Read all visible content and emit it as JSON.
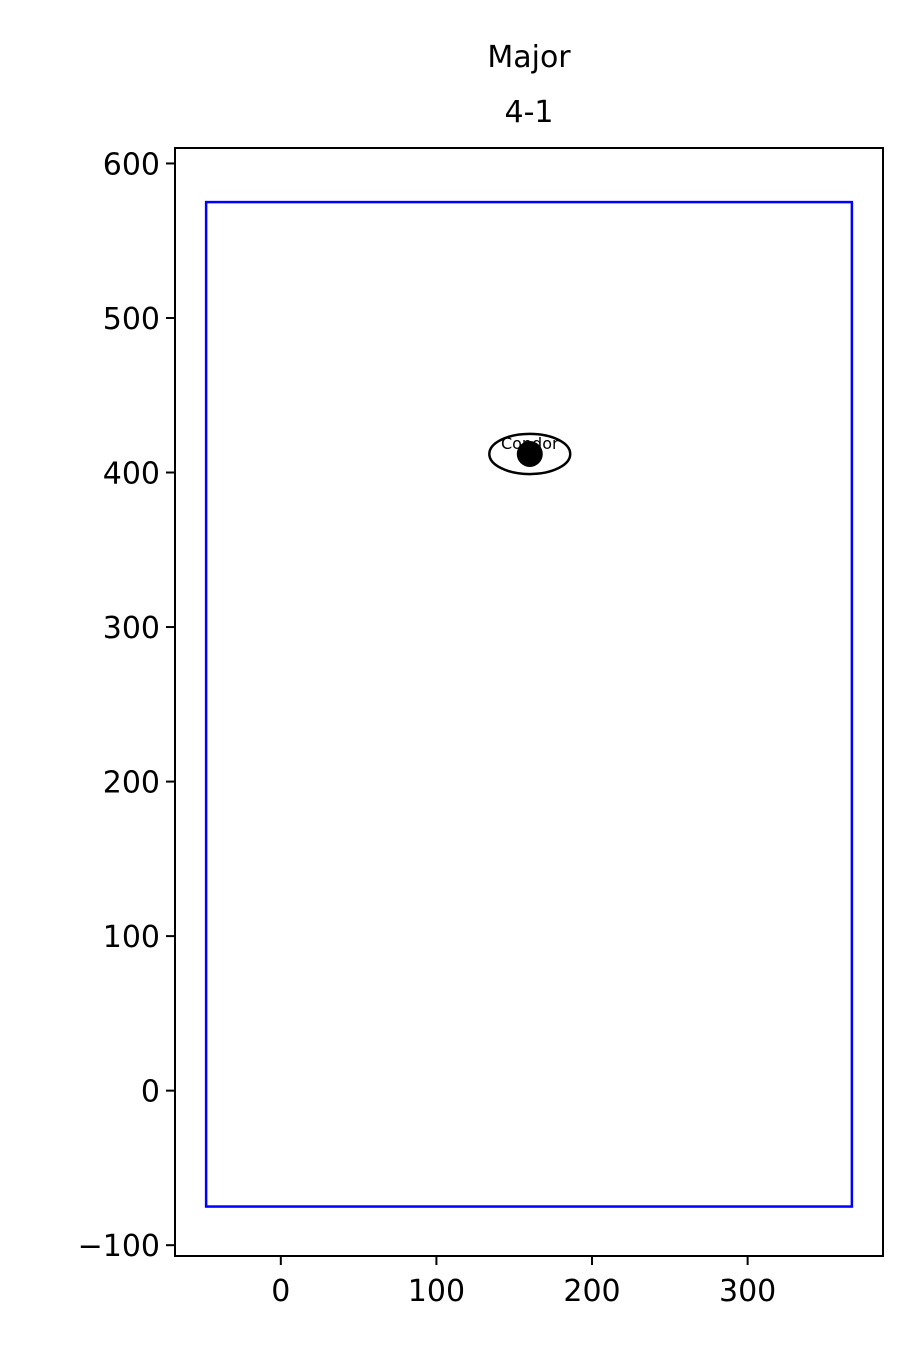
{
  "chart_data": {
    "type": "scatter",
    "title_line1": "Major",
    "title_line2": "4-1",
    "xlabel": "",
    "ylabel": "",
    "xlim": [
      -68,
      387
    ],
    "ylim": [
      -107,
      610
    ],
    "x_ticks": [
      0,
      100,
      200,
      300
    ],
    "y_ticks": [
      -100,
      0,
      100,
      200,
      300,
      400,
      500,
      600
    ],
    "grid": false,
    "boundary": {
      "color": "#0000ff",
      "x": [
        -48,
        367
      ],
      "y": [
        -75,
        575
      ]
    },
    "points": [
      {
        "label": "Condor",
        "x": 160,
        "y": 412,
        "ellipse_rx": 26,
        "ellipse_ry": 13
      }
    ]
  }
}
